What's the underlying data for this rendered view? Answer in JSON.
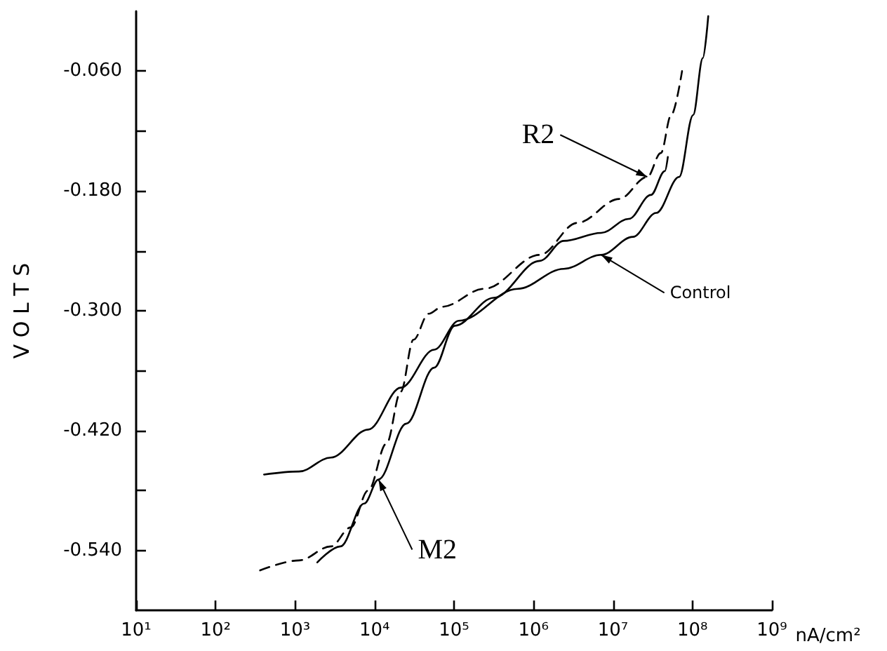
{
  "chart_data": {
    "type": "line",
    "ylabel": "V O L T S",
    "xlabel": "nA/cm²",
    "log": "x",
    "grid": false,
    "marker": "none",
    "xlim": [
      10,
      1000000000
    ],
    "ylim": [
      -0.6,
      0
    ],
    "xticks": [
      {
        "value": 10,
        "label": "10¹"
      },
      {
        "value": 100,
        "label": "10²"
      },
      {
        "value": 1000,
        "label": "10³"
      },
      {
        "value": 10000,
        "label": "10⁴"
      },
      {
        "value": 100000,
        "label": "10⁵"
      },
      {
        "value": 1000000,
        "label": "10⁶"
      },
      {
        "value": 10000000,
        "label": "10⁷"
      },
      {
        "value": 100000000,
        "label": "10⁸"
      },
      {
        "value": 1000000000,
        "label": "10⁹"
      }
    ],
    "yticks": [
      {
        "value": -0.54,
        "label": "-0.540"
      },
      {
        "value": -0.48,
        "label": null
      },
      {
        "value": -0.42,
        "label": "-0.420"
      },
      {
        "value": -0.36,
        "label": null
      },
      {
        "value": -0.3,
        "label": "-0.300"
      },
      {
        "value": -0.24,
        "label": null
      },
      {
        "value": -0.18,
        "label": "-0.180"
      },
      {
        "value": -0.12,
        "label": null
      },
      {
        "value": -0.06,
        "label": "-0.060"
      }
    ],
    "series": [
      {
        "color": "#000000",
        "line_style": "dashed",
        "x": [
          363,
          1122,
          2818,
          5012,
          8318,
          14125,
          21380,
          30900,
          47900,
          70800,
          240000,
          1200000,
          3550000,
          12000000,
          27000000,
          40000000,
          54000000,
          74000000
        ],
        "values": [
          -0.56,
          -0.55,
          -0.536,
          -0.517,
          -0.48,
          -0.433,
          -0.381,
          -0.329,
          -0.303,
          -0.296,
          -0.278,
          -0.244,
          -0.212,
          -0.188,
          -0.166,
          -0.142,
          -0.104,
          -0.06
        ]
      },
      {
        "color": "#000000",
        "line_style": "solid",
        "x": [
          407,
          1122,
          2818,
          8318,
          21380,
          56200,
          115000,
          630000,
          2400000,
          7100000,
          17800000,
          35000000,
          68000000,
          102000000,
          135000000,
          158000000
        ],
        "values": [
          -0.464,
          -0.461,
          -0.447,
          -0.419,
          -0.377,
          -0.339,
          -0.31,
          -0.278,
          -0.258,
          -0.244,
          -0.226,
          -0.202,
          -0.166,
          -0.104,
          -0.047,
          -0.005
        ]
      },
      {
        "color": "#000000",
        "line_style": "solid",
        "x": [
          1905,
          3715,
          7413,
          11220,
          25120,
          56200,
          102000,
          316000,
          1200000,
          2400000,
          7100000,
          15800000,
          30000000,
          45000000,
          49000000
        ],
        "values": [
          -0.552,
          -0.536,
          -0.493,
          -0.469,
          -0.413,
          -0.357,
          -0.315,
          -0.287,
          -0.25,
          -0.23,
          -0.222,
          -0.208,
          -0.184,
          -0.16,
          -0.146
        ]
      }
    ],
    "annotations": [
      {
        "text": "R2",
        "x": 27000000,
        "y": -0.166
      },
      {
        "text": "Control",
        "x": 7100000,
        "y": -0.244
      },
      {
        "text": "M2",
        "x": 11220,
        "y": -0.469
      }
    ]
  }
}
